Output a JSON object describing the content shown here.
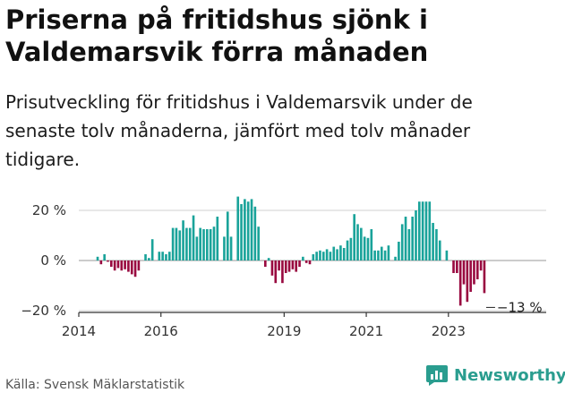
{
  "title": "Priserna på fritidshus sjönk i Valdemarsvik förra månaden",
  "subtitle": "Prisutveckling för fritidshus i Valdemarsvik under de senaste tolv månaderna, jämfört med tolv månader tidigare.",
  "source": "Källa: Svensk Mäklarstatistik",
  "brand": "Newsworthy",
  "colors": {
    "positive": "#1aa39a",
    "negative": "#990a40",
    "brand": "#2a9d8f"
  },
  "chart_data": {
    "type": "bar",
    "ylabel": "",
    "xlabel": "",
    "ylim": [
      -20,
      27
    ],
    "yticks": [
      {
        "value": 20,
        "label": "20 %"
      },
      {
        "value": 0,
        "label": "0 %"
      },
      {
        "value": -20,
        "label": "−20 %"
      }
    ],
    "xticks": [
      {
        "value": 2014,
        "label": "2014"
      },
      {
        "value": 2016,
        "label": "2016"
      },
      {
        "value": 2019,
        "label": "2019"
      },
      {
        "value": 2021,
        "label": "2021"
      },
      {
        "value": 2023,
        "label": "2023"
      }
    ],
    "end_label": "−13 %",
    "series": [
      {
        "values": [
          {
            "x": "2014-06",
            "y": 1.5
          },
          {
            "x": "2014-07",
            "y": -1.5
          },
          {
            "x": "2014-08",
            "y": 2.5
          },
          {
            "x": "2014-09",
            "y": -0.5
          },
          {
            "x": "2014-10",
            "y": -2.5
          },
          {
            "x": "2014-11",
            "y": -4
          },
          {
            "x": "2014-12",
            "y": -3
          },
          {
            "x": "2015-01",
            "y": -4
          },
          {
            "x": "2015-02",
            "y": -3.5
          },
          {
            "x": "2015-03",
            "y": -4.5
          },
          {
            "x": "2015-04",
            "y": -5.5
          },
          {
            "x": "2015-05",
            "y": -6.5
          },
          {
            "x": "2015-06",
            "y": -4
          },
          {
            "x": "2015-08",
            "y": 2.5
          },
          {
            "x": "2015-09",
            "y": 1
          },
          {
            "x": "2015-10",
            "y": 8.5
          },
          {
            "x": "2015-12",
            "y": 3.5
          },
          {
            "x": "2016-01",
            "y": 3.5
          },
          {
            "x": "2016-02",
            "y": 2.5
          },
          {
            "x": "2016-03",
            "y": 3.5
          },
          {
            "x": "2016-04",
            "y": 13
          },
          {
            "x": "2016-05",
            "y": 13
          },
          {
            "x": "2016-06",
            "y": 12
          },
          {
            "x": "2016-07",
            "y": 16
          },
          {
            "x": "2016-08",
            "y": 13
          },
          {
            "x": "2016-09",
            "y": 13
          },
          {
            "x": "2016-10",
            "y": 18
          },
          {
            "x": "2016-11",
            "y": 9.5
          },
          {
            "x": "2016-12",
            "y": 13
          },
          {
            "x": "2017-01",
            "y": 12.5
          },
          {
            "x": "2017-02",
            "y": 12.5
          },
          {
            "x": "2017-03",
            "y": 12.5
          },
          {
            "x": "2017-04",
            "y": 13.5
          },
          {
            "x": "2017-05",
            "y": 17.5
          },
          {
            "x": "2017-07",
            "y": 9.5
          },
          {
            "x": "2017-08",
            "y": 19.5
          },
          {
            "x": "2017-09",
            "y": 9.5
          },
          {
            "x": "2017-11",
            "y": 25.5
          },
          {
            "x": "2017-12",
            "y": 22.5
          },
          {
            "x": "2018-01",
            "y": 24.5
          },
          {
            "x": "2018-02",
            "y": 23.5
          },
          {
            "x": "2018-03",
            "y": 24.5
          },
          {
            "x": "2018-04",
            "y": 21.5
          },
          {
            "x": "2018-05",
            "y": 13.5
          },
          {
            "x": "2018-07",
            "y": -2.5
          },
          {
            "x": "2018-08",
            "y": 1
          },
          {
            "x": "2018-09",
            "y": -6
          },
          {
            "x": "2018-10",
            "y": -9
          },
          {
            "x": "2018-11",
            "y": -4
          },
          {
            "x": "2018-12",
            "y": -9
          },
          {
            "x": "2019-01",
            "y": -5
          },
          {
            "x": "2019-02",
            "y": -4.5
          },
          {
            "x": "2019-03",
            "y": -3.5
          },
          {
            "x": "2019-04",
            "y": -4.5
          },
          {
            "x": "2019-05",
            "y": -2.5
          },
          {
            "x": "2019-06",
            "y": 1.5
          },
          {
            "x": "2019-07",
            "y": -1
          },
          {
            "x": "2019-08",
            "y": -1.5
          },
          {
            "x": "2019-09",
            "y": 2.5
          },
          {
            "x": "2019-10",
            "y": 3.5
          },
          {
            "x": "2019-11",
            "y": 4
          },
          {
            "x": "2019-12",
            "y": 3.5
          },
          {
            "x": "2020-01",
            "y": 4.5
          },
          {
            "x": "2020-02",
            "y": 3.5
          },
          {
            "x": "2020-03",
            "y": 5.5
          },
          {
            "x": "2020-04",
            "y": 4.5
          },
          {
            "x": "2020-05",
            "y": 6
          },
          {
            "x": "2020-06",
            "y": 5
          },
          {
            "x": "2020-07",
            "y": 8
          },
          {
            "x": "2020-08",
            "y": 9
          },
          {
            "x": "2020-09",
            "y": 18.5
          },
          {
            "x": "2020-10",
            "y": 14.5
          },
          {
            "x": "2020-11",
            "y": 13
          },
          {
            "x": "2020-12",
            "y": 9.5
          },
          {
            "x": "2021-01",
            "y": 9
          },
          {
            "x": "2021-02",
            "y": 12.5
          },
          {
            "x": "2021-03",
            "y": 4
          },
          {
            "x": "2021-04",
            "y": 4
          },
          {
            "x": "2021-05",
            "y": 5.5
          },
          {
            "x": "2021-06",
            "y": 4
          },
          {
            "x": "2021-07",
            "y": 6
          },
          {
            "x": "2021-09",
            "y": 1.5
          },
          {
            "x": "2021-10",
            "y": 7.5
          },
          {
            "x": "2021-11",
            "y": 14.5
          },
          {
            "x": "2021-12",
            "y": 17.5
          },
          {
            "x": "2022-01",
            "y": 12.5
          },
          {
            "x": "2022-02",
            "y": 17.5
          },
          {
            "x": "2022-03",
            "y": 20
          },
          {
            "x": "2022-04",
            "y": 23.5
          },
          {
            "x": "2022-05",
            "y": 23.5
          },
          {
            "x": "2022-06",
            "y": 23.5
          },
          {
            "x": "2022-07",
            "y": 23.5
          },
          {
            "x": "2022-08",
            "y": 15
          },
          {
            "x": "2022-09",
            "y": 12.5
          },
          {
            "x": "2022-10",
            "y": 8
          },
          {
            "x": "2022-12",
            "y": 4
          },
          {
            "x": "2023-02",
            "y": -5
          },
          {
            "x": "2023-03",
            "y": -5
          },
          {
            "x": "2023-04",
            "y": -18
          },
          {
            "x": "2023-05",
            "y": -9.5
          },
          {
            "x": "2023-06",
            "y": -16.5
          },
          {
            "x": "2023-07",
            "y": -12.5
          },
          {
            "x": "2023-08",
            "y": -9.5
          },
          {
            "x": "2023-09",
            "y": -7.5
          },
          {
            "x": "2023-10",
            "y": -4
          },
          {
            "x": "2023-11",
            "y": -13
          }
        ]
      }
    ]
  }
}
